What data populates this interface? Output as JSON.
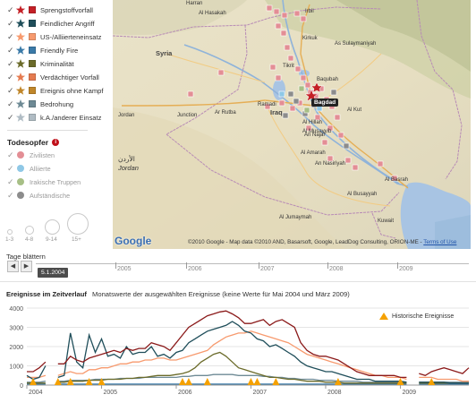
{
  "colors": {
    "Sprengstoffvorfall": "#c42026",
    "Feindlicher Angriff": "#1f4e5a",
    "US-/Alliierteneinsatz": "#f79a6e",
    "Friendly Fire": "#3a7aa8",
    "Kriminalität": "#6b6b2a",
    "Verdächtiger Vorfall": "#e57b50",
    "Ereignis ohne Kampf": "#c0862a",
    "Bedrohung": "#6e8a95",
    "k.A./anderer Einsatz": "#b0bcc4",
    "hist_marker": "#f5a100"
  },
  "legend": {
    "categories": [
      {
        "label": "Sprengstoffvorfall",
        "icon": "star-icon",
        "color": "#c42026"
      },
      {
        "label": "Feindlicher Angriff",
        "icon": "star-icon",
        "color": "#1f4e5a"
      },
      {
        "label": "US-/Alliierteneinsatz",
        "icon": "star-icon",
        "color": "#f79a6e"
      },
      {
        "label": "Friendly Fire",
        "icon": "star-icon",
        "color": "#3a7aa8"
      },
      {
        "label": "Kriminalität",
        "icon": "star-icon",
        "color": "#6b6b2a"
      },
      {
        "label": "Verdächtiger Vorfall",
        "icon": "star-icon",
        "color": "#e57b50"
      },
      {
        "label": "Ereignis ohne Kampf",
        "icon": "star-icon",
        "color": "#c0862a"
      },
      {
        "label": "Bedrohung",
        "icon": "star-icon",
        "color": "#6e8a95"
      },
      {
        "label": "k.A./anderer Einsatz",
        "icon": "star-icon",
        "color": "#b0bcc4"
      }
    ],
    "victims_title": "Todesopfer",
    "info_glyph": "i",
    "victims": [
      {
        "label": "Zivilisten",
        "color": "#e38e95"
      },
      {
        "label": "Alliierte",
        "color": "#8fc8e6"
      },
      {
        "label": "Irakische Truppen",
        "color": "#a7bf86"
      },
      {
        "label": "Aufständische",
        "color": "#8c8c8c"
      }
    ],
    "size_labels": [
      "1-3",
      "4-8",
      "9-14",
      "15+"
    ]
  },
  "map": {
    "labels": [
      "Harran",
      "Al Hasakah",
      "Irbil",
      "Kirkuk",
      "As Sulaymaniyah",
      "Syria",
      "Tikrit",
      "Baqubah",
      "Ramadi",
      "Baghdad",
      "Iraq",
      "Al Kut",
      "Jordan",
      "Ar Rutba",
      "Al Hillah",
      "An Najaf",
      "Al Amarah",
      "An Nasiriyah",
      "Al Basrah",
      "Kuwait",
      "Al Jumaymah",
      "Al Busayyah",
      "Junction",
      "الأردن",
      "Jordan",
      "Al Musayyib"
    ],
    "baghdad_tag": "Bagdad",
    "google_logo": "Google",
    "copyright": "©2010 Google - Map data ©2010  AND, Basarsoft, Google, LeadDog Consulting, ORION-ME - ",
    "terms": "Terms of Use"
  },
  "timeline": {
    "title": "Tage blättern",
    "prev_glyph": "◀",
    "next_glyph": "▶",
    "current_date": "5.1.2004",
    "years": [
      "2005",
      "2006",
      "2007",
      "2008",
      "2009"
    ]
  },
  "chart_section": {
    "title_bold": "Ereignisse im Zeitverlauf",
    "subtitle": "Monatswerte der ausgewählten Ereignisse (keine Werte für Mai 2004 und März 2009)",
    "hist_legend": "Historische Ereignisse"
  },
  "chart_data": {
    "type": "line",
    "x": [
      "2004-01",
      "2004-02",
      "2004-03",
      "2004-04",
      "2004-05",
      "2004-06",
      "2004-07",
      "2004-08",
      "2004-09",
      "2004-10",
      "2004-11",
      "2004-12",
      "2005-01",
      "2005-02",
      "2005-03",
      "2005-04",
      "2005-05",
      "2005-06",
      "2005-07",
      "2005-08",
      "2005-09",
      "2005-10",
      "2005-11",
      "2005-12",
      "2006-01",
      "2006-02",
      "2006-03",
      "2006-04",
      "2006-05",
      "2006-06",
      "2006-07",
      "2006-08",
      "2006-09",
      "2006-10",
      "2006-11",
      "2006-12",
      "2007-01",
      "2007-02",
      "2007-03",
      "2007-04",
      "2007-05",
      "2007-06",
      "2007-07",
      "2007-08",
      "2007-09",
      "2007-10",
      "2007-11",
      "2007-12",
      "2008-01",
      "2008-02",
      "2008-03",
      "2008-04",
      "2008-05",
      "2008-06",
      "2008-07",
      "2008-08",
      "2008-09",
      "2008-10",
      "2008-11",
      "2008-12",
      "2009-01",
      "2009-02",
      "2009-03",
      "2009-04",
      "2009-05",
      "2009-06",
      "2009-07",
      "2009-08",
      "2009-09",
      "2009-10",
      "2009-11",
      "2009-12"
    ],
    "series": [
      {
        "color": "#8b1a1a",
        "values": [
          700,
          700,
          900,
          1200,
          null,
          1100,
          1100,
          1500,
          1300,
          1200,
          1400,
          1500,
          1600,
          1700,
          1800,
          1700,
          1900,
          1800,
          1900,
          1900,
          2200,
          2100,
          2000,
          1800,
          2200,
          2600,
          3000,
          3200,
          3400,
          3600,
          3700,
          3800,
          3850,
          3700,
          3500,
          3200,
          3200,
          3300,
          3400,
          3100,
          3300,
          3400,
          3200,
          3000,
          2200,
          1800,
          1600,
          1500,
          1500,
          1400,
          1300,
          1100,
          900,
          700,
          600,
          500,
          500,
          500,
          500,
          500,
          400,
          400,
          null,
          600,
          500,
          700,
          800,
          900,
          800,
          700,
          600,
          900
        ]
      },
      {
        "color": "#1f4e5a",
        "values": [
          500,
          300,
          400,
          1000,
          null,
          400,
          500,
          2700,
          1200,
          900,
          2600,
          1700,
          2400,
          1500,
          1600,
          1400,
          2000,
          1600,
          1700,
          1700,
          2000,
          1500,
          1600,
          1400,
          1700,
          1800,
          2200,
          2400,
          2600,
          2800,
          2900,
          3000,
          3100,
          3300,
          3100,
          2800,
          2700,
          2400,
          2300,
          2000,
          2100,
          1900,
          1700,
          1500,
          1200,
          1000,
          900,
          800,
          700,
          700,
          600,
          500,
          400,
          300,
          300,
          300,
          200,
          200,
          200,
          200,
          200,
          150,
          null,
          150,
          150,
          150,
          150,
          150,
          100,
          100,
          100,
          100
        ]
      },
      {
        "color": "#f79a6e",
        "values": [
          400,
          400,
          400,
          500,
          null,
          500,
          600,
          700,
          600,
          600,
          800,
          800,
          900,
          900,
          1000,
          1100,
          1100,
          1200,
          1200,
          1300,
          1300,
          1400,
          1400,
          1300,
          1300,
          1400,
          1500,
          1600,
          1700,
          1800,
          2100,
          2300,
          2500,
          2600,
          2700,
          2700,
          2800,
          2700,
          2600,
          2500,
          2400,
          2300,
          2200,
          2000,
          1800,
          1600,
          1500,
          1400,
          1300,
          1200,
          1100,
          1000,
          900,
          800,
          700,
          600,
          500,
          500,
          400,
          400,
          400,
          300,
          null,
          400,
          400,
          400,
          300,
          300,
          300,
          300,
          200,
          200
        ]
      },
      {
        "color": "#6b6b2a",
        "values": [
          100,
          100,
          100,
          100,
          null,
          150,
          150,
          200,
          200,
          200,
          250,
          250,
          250,
          300,
          300,
          300,
          350,
          350,
          400,
          400,
          450,
          500,
          500,
          500,
          550,
          600,
          700,
          900,
          1200,
          1400,
          1600,
          1700,
          1500,
          1200,
          900,
          800,
          700,
          600,
          500,
          400,
          400,
          350,
          300,
          300,
          250,
          200,
          200,
          200,
          150,
          150,
          150,
          100,
          100,
          100,
          100,
          100,
          100,
          100,
          100,
          100,
          100,
          100,
          null,
          100,
          100,
          100,
          100,
          100,
          100,
          100,
          100,
          100
        ]
      },
      {
        "color": "#3a7aa8",
        "values": [
          50,
          50,
          50,
          50,
          null,
          50,
          50,
          50,
          50,
          50,
          50,
          50,
          50,
          50,
          50,
          50,
          50,
          50,
          50,
          50,
          50,
          50,
          50,
          50,
          50,
          50,
          50,
          50,
          50,
          50,
          50,
          50,
          50,
          50,
          50,
          50,
          50,
          50,
          50,
          50,
          50,
          50,
          50,
          50,
          50,
          50,
          50,
          50,
          50,
          50,
          50,
          50,
          50,
          50,
          50,
          50,
          50,
          50,
          50,
          50,
          50,
          50,
          null,
          50,
          50,
          50,
          50,
          50,
          50,
          50,
          50,
          50
        ]
      },
      {
        "color": "#6e8a95",
        "values": [
          150,
          150,
          150,
          200,
          null,
          200,
          200,
          250,
          250,
          250,
          250,
          300,
          300,
          300,
          300,
          350,
          350,
          350,
          350,
          400,
          400,
          400,
          400,
          400,
          400,
          450,
          450,
          500,
          500,
          500,
          550,
          550,
          550,
          550,
          500,
          500,
          500,
          500,
          450,
          450,
          400,
          400,
          350,
          350,
          300,
          300,
          300,
          250,
          250,
          250,
          200,
          200,
          200,
          200,
          150,
          150,
          150,
          150,
          150,
          150,
          150,
          150,
          null,
          150,
          150,
          150,
          150,
          150,
          150,
          150,
          150,
          150
        ]
      }
    ],
    "hist_events": [
      "2004-02",
      "2004-06",
      "2004-08",
      "2004-11",
      "2005-01",
      "2006-02",
      "2006-03",
      "2006-06",
      "2007-01",
      "2007-02",
      "2007-05",
      "2008-03",
      "2009-01",
      "2009-06"
    ],
    "yticks": [
      0,
      1000,
      2000,
      3000,
      4000
    ],
    "ylim": [
      0,
      4000
    ],
    "xticks": [
      "2004",
      "2005",
      "2006",
      "2007",
      "2008",
      "2009"
    ],
    "grid": true
  }
}
